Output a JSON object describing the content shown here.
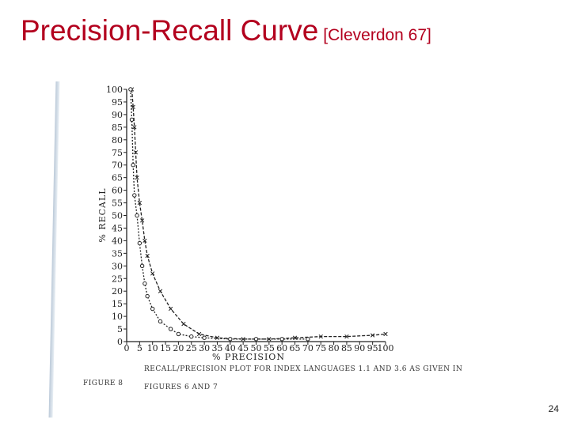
{
  "slide": {
    "title": "Precision-Recall Curve",
    "citation": "[Cleverdon 67]",
    "page_number": "24"
  },
  "figure": {
    "label": "FIGURE 8",
    "caption_line1": "RECALL/PRECISION PLOT FOR INDEX LANGUAGES 1.1 AND 3.6 AS GIVEN IN",
    "caption_line2": "FIGURES 6 AND 7"
  },
  "chart_data": {
    "type": "line",
    "xlabel": "% PRECISION",
    "ylabel": "% RECALL",
    "xlim": [
      0,
      100
    ],
    "ylim": [
      0,
      100
    ],
    "x_ticks": [
      0,
      5,
      10,
      15,
      20,
      25,
      30,
      35,
      40,
      45,
      50,
      55,
      60,
      65,
      70,
      75,
      80,
      85,
      90,
      95,
      100
    ],
    "y_ticks": [
      0,
      5,
      10,
      15,
      20,
      25,
      30,
      35,
      40,
      45,
      50,
      55,
      60,
      65,
      70,
      75,
      80,
      85,
      90,
      95,
      100
    ],
    "grid": false,
    "series": [
      {
        "marker": "x",
        "color": "#222222",
        "points": [
          [
            2,
            100
          ],
          [
            2.5,
            93
          ],
          [
            3,
            85
          ],
          [
            3.5,
            75
          ],
          [
            4,
            65
          ],
          [
            5,
            55
          ],
          [
            6,
            48
          ],
          [
            7,
            40
          ],
          [
            8,
            34
          ],
          [
            10,
            27
          ],
          [
            13,
            20
          ],
          [
            17,
            13
          ],
          [
            22,
            7
          ],
          [
            28,
            3
          ],
          [
            35,
            1.5
          ],
          [
            45,
            1
          ],
          [
            55,
            1
          ],
          [
            65,
            1.5
          ],
          [
            75,
            2
          ],
          [
            85,
            2
          ],
          [
            95,
            2.5
          ],
          [
            100,
            3
          ]
        ]
      },
      {
        "marker": "o",
        "color": "#222222",
        "points": [
          [
            1.5,
            100
          ],
          [
            2,
            88
          ],
          [
            2.5,
            70
          ],
          [
            3,
            58
          ],
          [
            4,
            50
          ],
          [
            5,
            39
          ],
          [
            6,
            30
          ],
          [
            7,
            23
          ],
          [
            8,
            18
          ],
          [
            10,
            13
          ],
          [
            13,
            8
          ],
          [
            17,
            5
          ],
          [
            20,
            3
          ],
          [
            25,
            2
          ],
          [
            30,
            1.5
          ],
          [
            40,
            1
          ],
          [
            50,
            1
          ],
          [
            60,
            1
          ],
          [
            70,
            1
          ]
        ]
      }
    ]
  }
}
